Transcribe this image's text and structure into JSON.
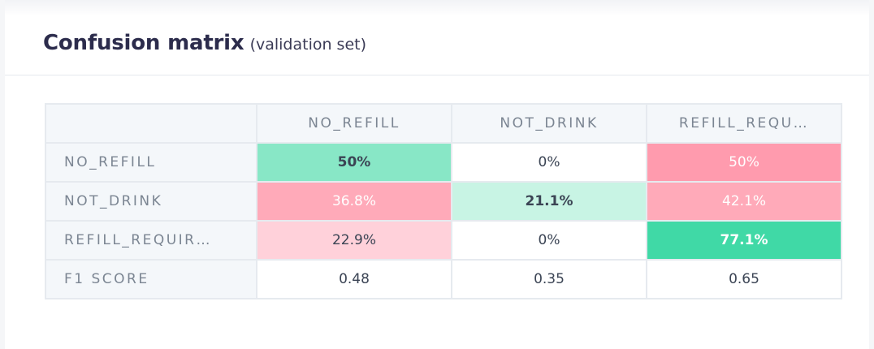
{
  "panel": {
    "title": "Confusion matrix",
    "subtitle": "(validation set)"
  },
  "matrix": {
    "columns": [
      "NO_REFILL",
      "NOT_DRINK",
      "REFILL_REQU…"
    ],
    "rows": [
      {
        "label": "NO_REFILL",
        "cells": [
          "50%",
          "0%",
          "50%"
        ]
      },
      {
        "label": "NOT_DRINK",
        "cells": [
          "36.8%",
          "21.1%",
          "42.1%"
        ]
      },
      {
        "label": "REFILL_REQUIR…",
        "cells": [
          "22.9%",
          "0%",
          "77.1%"
        ]
      }
    ],
    "f1": {
      "label": "F1 SCORE",
      "cells": [
        "0.48",
        "0.35",
        "0.65"
      ]
    }
  },
  "colors": {
    "correct_strong": "#40d9a6",
    "correct_mid": "#88e7c6",
    "correct_light": "#c8f4e4",
    "error_strong": "#ff9bae",
    "error_mid": "#ffaab9",
    "error_light": "#ffd1da",
    "title": "#2c2c4c",
    "header_text": "#7b8592"
  }
}
